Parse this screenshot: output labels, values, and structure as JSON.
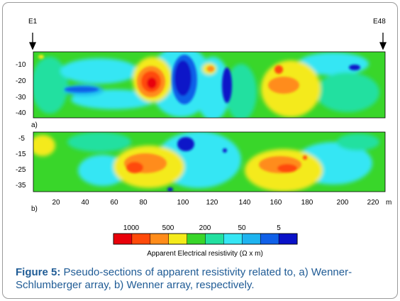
{
  "figure": {
    "electrode_start": "E1",
    "electrode_end": "E48",
    "panels": [
      {
        "label": "a)",
        "depth_ticks": [
          "-10",
          "-20",
          "-30",
          "-40"
        ]
      },
      {
        "label": "b)",
        "depth_ticks": [
          "-5",
          "-15",
          "-25",
          "-35"
        ]
      }
    ],
    "x_ticks": [
      "20",
      "40",
      "60",
      "80",
      "100",
      "120",
      "140",
      "160",
      "180",
      "200",
      "220"
    ],
    "x_unit": "m",
    "colorbar": {
      "tick_labels": [
        "1000",
        "500",
        "200",
        "50",
        "5"
      ],
      "title": "Apparent Electrical resistivity (Ω x m)",
      "colors": [
        "#e8000a",
        "#ff4a0a",
        "#ff8c1a",
        "#f4ea1a",
        "#39d62a",
        "#22e0a0",
        "#36e6f4",
        "#1eb4f0",
        "#1060e8",
        "#0a12c8"
      ]
    }
  },
  "caption": {
    "label": "Figure 5:",
    "text": " Pseudo-sections of apparent resistivity related to, a) Wenner-Schlumberger array, b) Wenner array, respectively."
  }
}
